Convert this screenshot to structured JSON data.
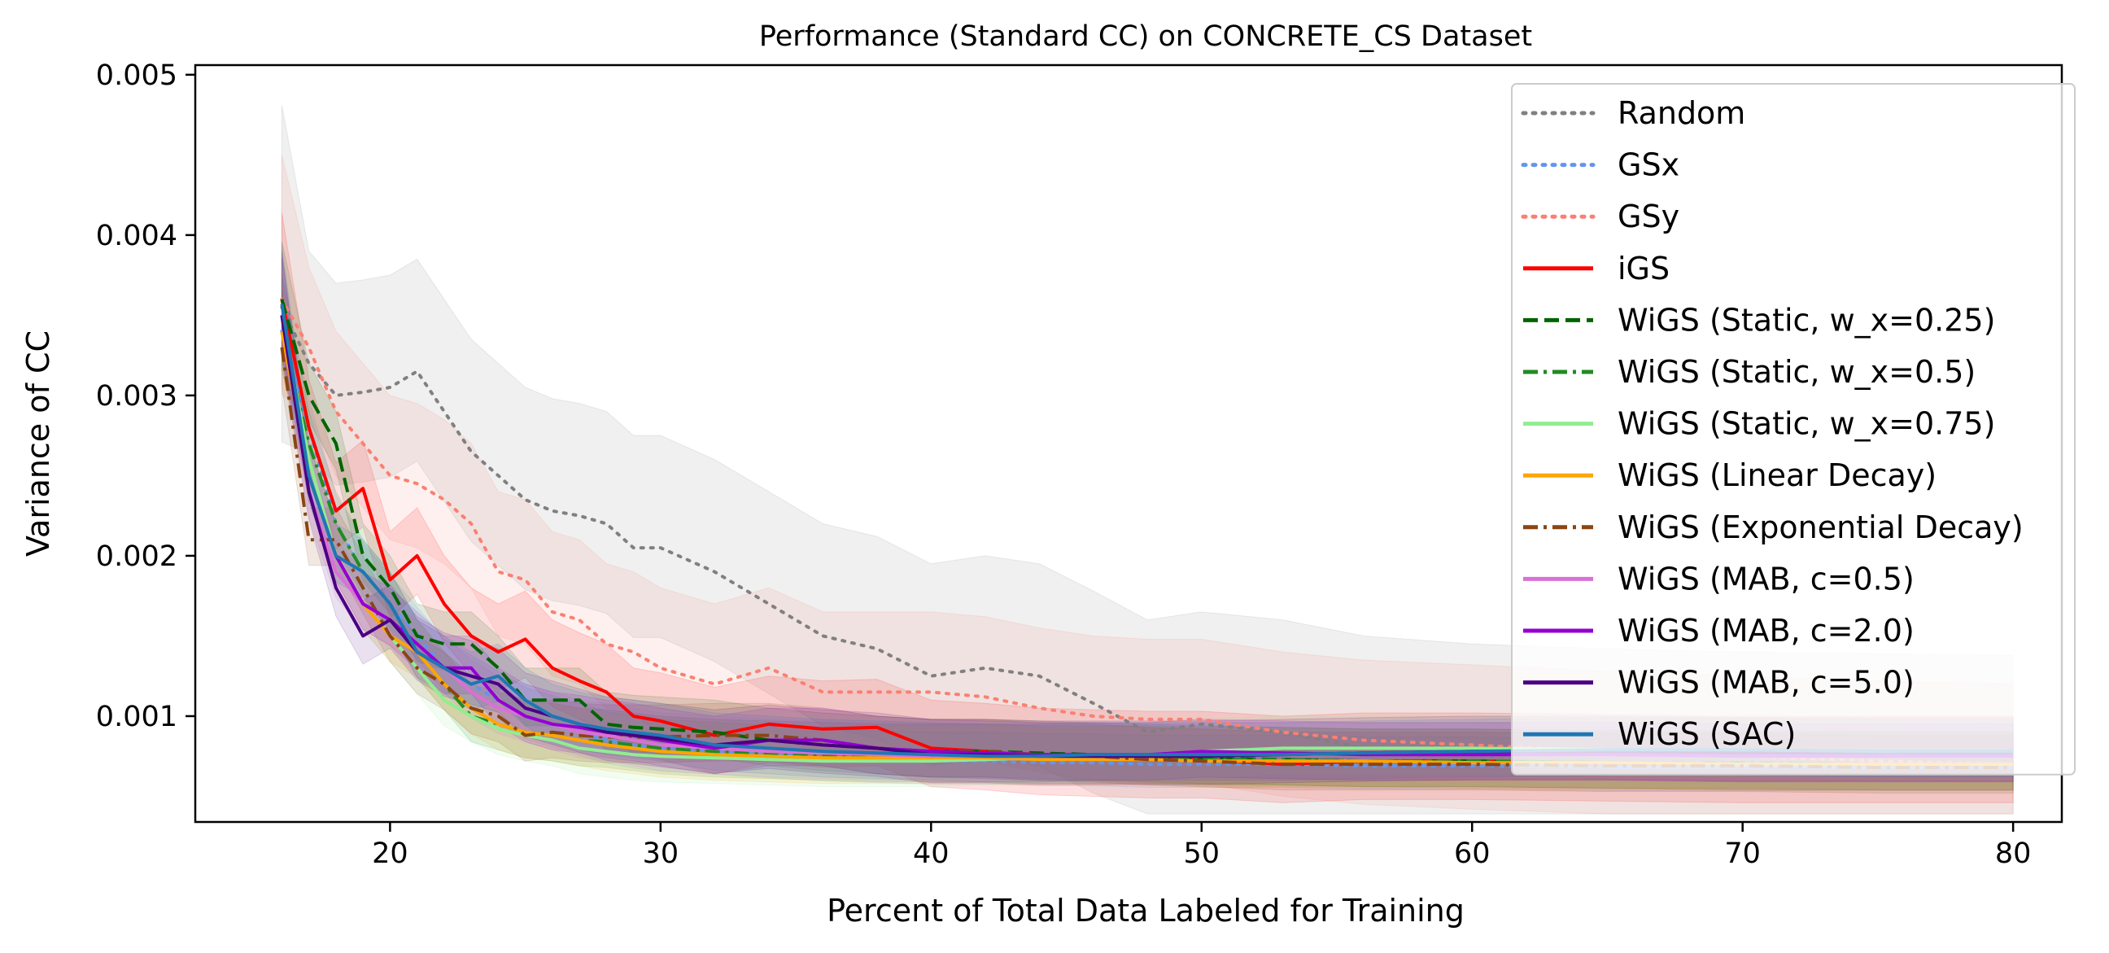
{
  "chart_data": {
    "type": "line",
    "title": "Performance (Standard CC) on CONCRETE_CS Dataset",
    "xlabel": "Percent of Total Data Labeled for Training",
    "ylabel": "Variance of CC",
    "xlim": [
      12.8,
      81.8
    ],
    "ylim": [
      0.00034,
      0.00506
    ],
    "x_ticks": [
      20,
      30,
      40,
      50,
      60,
      70,
      80
    ],
    "y_ticks": [
      0.001,
      0.002,
      0.003,
      0.004,
      0.005
    ],
    "x_tick_labels": [
      "20",
      "30",
      "40",
      "50",
      "60",
      "70",
      "80"
    ],
    "y_tick_labels": [
      "0.001",
      "0.002",
      "0.003",
      "0.004",
      "0.005"
    ],
    "grid": false,
    "legend_position": "top-right",
    "x": [
      16,
      17,
      18,
      19,
      20,
      21,
      22,
      23,
      24,
      25,
      26,
      27,
      28,
      29,
      30,
      32,
      34,
      36,
      38,
      40,
      42,
      44,
      46,
      48,
      50,
      53,
      56,
      60,
      65,
      70,
      75,
      80
    ],
    "series": [
      {
        "name": "Random",
        "color": "#808080",
        "dash": "dot",
        "values": [
          0.00355,
          0.0032,
          0.003,
          0.00302,
          0.00305,
          0.00315,
          0.0029,
          0.00265,
          0.0025,
          0.00235,
          0.00228,
          0.00225,
          0.0022,
          0.00205,
          0.00205,
          0.0019,
          0.0017,
          0.0015,
          0.00142,
          0.00125,
          0.0013,
          0.00125,
          0.00108,
          0.0009,
          0.00095,
          0.0009,
          0.0008,
          0.00075,
          0.00072,
          0.0007,
          0.00069,
          0.00068
        ],
        "band": 0.0007
      },
      {
        "name": "GSx",
        "color": "#6495ed",
        "dash": "dot",
        "values": [
          0.0034,
          0.0028,
          0.0022,
          0.0019,
          0.0017,
          0.0015,
          0.0013,
          0.0012,
          0.0011,
          0.001,
          0.00095,
          0.0009,
          0.00085,
          0.00082,
          0.0008,
          0.00078,
          0.00076,
          0.00074,
          0.00073,
          0.00072,
          0.00072,
          0.00071,
          0.00071,
          0.0007,
          0.0007,
          0.0007,
          0.00069,
          0.00069,
          0.00068,
          0.00068,
          0.00068,
          0.00068
        ],
        "band": 0.00018
      },
      {
        "name": "GSy",
        "color": "#fa8072",
        "dash": "dot",
        "values": [
          0.0036,
          0.0033,
          0.0029,
          0.0027,
          0.0025,
          0.00245,
          0.00235,
          0.0022,
          0.0019,
          0.00185,
          0.00165,
          0.0016,
          0.00145,
          0.0014,
          0.0013,
          0.0012,
          0.0013,
          0.00115,
          0.00115,
          0.00115,
          0.00112,
          0.00105,
          0.001,
          0.00098,
          0.00098,
          0.0009,
          0.00085,
          0.00082,
          0.00078,
          0.00075,
          0.00072,
          0.0007
        ],
        "band": 0.0005
      },
      {
        "name": "iGS",
        "color": "#ff0000",
        "dash": "solid",
        "values": [
          0.0036,
          0.0028,
          0.00228,
          0.00242,
          0.00185,
          0.002,
          0.0017,
          0.0015,
          0.0014,
          0.00148,
          0.0013,
          0.00122,
          0.00115,
          0.001,
          0.00097,
          0.00088,
          0.00095,
          0.00092,
          0.00093,
          0.0008,
          0.00078,
          0.00075,
          0.00074,
          0.00073,
          0.00073,
          0.0007,
          0.00072,
          0.00072,
          0.00071,
          0.0007,
          0.0007,
          0.0007
        ],
        "band": 0.0003
      },
      {
        "name": "WiGS (Static, w_x=0.25)",
        "color": "#006400",
        "dash": "dash",
        "values": [
          0.0036,
          0.003,
          0.0027,
          0.002,
          0.0018,
          0.0015,
          0.00145,
          0.00145,
          0.0013,
          0.0011,
          0.0011,
          0.0011,
          0.00095,
          0.00093,
          0.00092,
          0.0009,
          0.00085,
          0.00082,
          0.0008,
          0.00078,
          0.00078,
          0.00077,
          0.00076,
          0.00075,
          0.00074,
          0.00073,
          0.00072,
          0.00072,
          0.00071,
          0.0007,
          0.0007,
          0.0007
        ],
        "band": 0.0002
      },
      {
        "name": "WiGS (Static, w_x=0.5)",
        "color": "#228b22",
        "dash": "dashdot",
        "values": [
          0.0034,
          0.0027,
          0.0022,
          0.0019,
          0.0017,
          0.0014,
          0.0012,
          0.001,
          0.00095,
          0.0009,
          0.00088,
          0.00085,
          0.00084,
          0.00082,
          0.0008,
          0.00078,
          0.00077,
          0.00076,
          0.00075,
          0.00075,
          0.00075,
          0.00074,
          0.00074,
          0.00074,
          0.00073,
          0.00073,
          0.00072,
          0.00072,
          0.00071,
          0.00071,
          0.0007,
          0.0007
        ],
        "band": 0.0002
      },
      {
        "name": "WiGS (Static, w_x=0.75)",
        "color": "#90ee90",
        "dash": "solid",
        "values": [
          0.0035,
          0.0026,
          0.002,
          0.0017,
          0.0015,
          0.0013,
          0.0011,
          0.001,
          0.00092,
          0.00088,
          0.00085,
          0.0008,
          0.00078,
          0.00076,
          0.00075,
          0.00074,
          0.00073,
          0.00072,
          0.00072,
          0.00072,
          0.00073,
          0.00074,
          0.00075,
          0.00076,
          0.00078,
          0.0008,
          0.0008,
          0.0008,
          0.00079,
          0.00078,
          0.00077,
          0.00076
        ],
        "band": 0.0002
      },
      {
        "name": "WiGS (Linear Decay)",
        "color": "#ffa500",
        "dash": "solid",
        "values": [
          0.0034,
          0.0025,
          0.002,
          0.0017,
          0.0015,
          0.0014,
          0.0012,
          0.00105,
          0.00095,
          0.0009,
          0.00088,
          0.00085,
          0.00082,
          0.0008,
          0.00078,
          0.00076,
          0.00075,
          0.00074,
          0.00074,
          0.00074,
          0.00074,
          0.00073,
          0.00073,
          0.00073,
          0.00072,
          0.00072,
          0.00072,
          0.00071,
          0.00071,
          0.0007,
          0.0007,
          0.0007
        ],
        "band": 0.0002
      },
      {
        "name": "WiGS (Exponential Decay)",
        "color": "#8b4513",
        "dash": "dashdot",
        "values": [
          0.0033,
          0.0021,
          0.0021,
          0.0018,
          0.0015,
          0.0013,
          0.0012,
          0.00105,
          0.001,
          0.00088,
          0.0009,
          0.00088,
          0.00087,
          0.00087,
          0.00087,
          0.00088,
          0.00088,
          0.00085,
          0.0008,
          0.00078,
          0.00078,
          0.00076,
          0.00075,
          0.00073,
          0.00072,
          0.0007,
          0.0007,
          0.0007,
          0.00069,
          0.00069,
          0.00068,
          0.00068
        ],
        "band": 0.0002
      },
      {
        "name": "WiGS (MAB, c=0.5)",
        "color": "#da70d6",
        "dash": "solid",
        "values": [
          0.0035,
          0.0024,
          0.0019,
          0.0017,
          0.0016,
          0.0014,
          0.0013,
          0.00115,
          0.00105,
          0.001,
          0.00095,
          0.0009,
          0.00088,
          0.00085,
          0.00082,
          0.0008,
          0.00078,
          0.00077,
          0.00076,
          0.00075,
          0.00075,
          0.00075,
          0.00075,
          0.00075,
          0.00076,
          0.00076,
          0.00076,
          0.00076,
          0.00076,
          0.00075,
          0.00075,
          0.00075
        ],
        "band": 0.0002
      },
      {
        "name": "WiGS (MAB, c=2.0)",
        "color": "#9400d3",
        "dash": "solid",
        "values": [
          0.0035,
          0.0025,
          0.002,
          0.0017,
          0.0016,
          0.00145,
          0.0013,
          0.0013,
          0.0011,
          0.001,
          0.00095,
          0.00093,
          0.0009,
          0.00088,
          0.00085,
          0.0008,
          0.00085,
          0.00085,
          0.0008,
          0.00078,
          0.00077,
          0.00076,
          0.00076,
          0.00076,
          0.00078,
          0.00077,
          0.00076,
          0.00076,
          0.00076,
          0.00075,
          0.00075,
          0.00075
        ],
        "band": 0.0002
      },
      {
        "name": "WiGS (MAB, c=5.0)",
        "color": "#4b0082",
        "dash": "solid",
        "values": [
          0.0035,
          0.0024,
          0.0018,
          0.0015,
          0.0016,
          0.0014,
          0.0013,
          0.00125,
          0.0012,
          0.00105,
          0.001,
          0.00095,
          0.0009,
          0.00088,
          0.00086,
          0.00082,
          0.00085,
          0.00082,
          0.0008,
          0.00076,
          0.00076,
          0.00075,
          0.00075,
          0.00075,
          0.00075,
          0.00076,
          0.00077,
          0.00078,
          0.00078,
          0.00077,
          0.00077,
          0.00077
        ],
        "band": 0.00022
      },
      {
        "name": "WiGS (SAC)",
        "color": "#1f77b4",
        "dash": "solid",
        "values": [
          0.00357,
          0.0025,
          0.002,
          0.0019,
          0.0017,
          0.0014,
          0.0013,
          0.0012,
          0.00125,
          0.0011,
          0.001,
          0.00095,
          0.00092,
          0.0009,
          0.00088,
          0.00082,
          0.0008,
          0.00078,
          0.00077,
          0.00076,
          0.00075,
          0.00075,
          0.00076,
          0.00076,
          0.00076,
          0.00076,
          0.00077,
          0.00078,
          0.00079,
          0.00079,
          0.00078,
          0.00078
        ],
        "band": 0.0002
      }
    ]
  }
}
